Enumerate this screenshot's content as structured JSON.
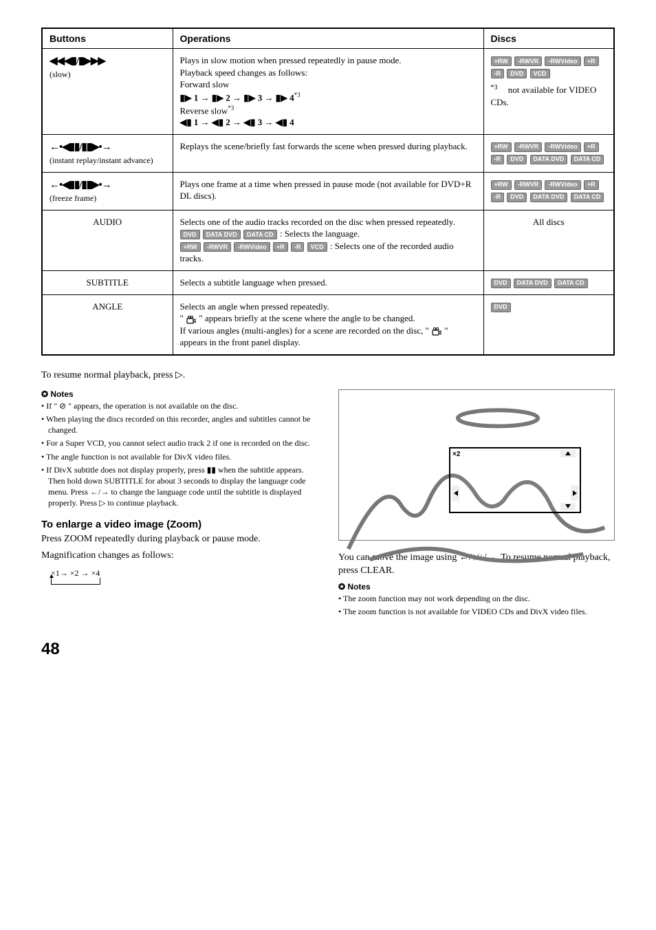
{
  "table": {
    "headers": {
      "buttons": "Buttons",
      "operations": "Operations",
      "discs": "Discs"
    },
    "rows": [
      {
        "button_glyphs": "◀◀◀▮/▮▶▶▶",
        "button_sub": "(slow)",
        "op_l1": "Plays in slow motion when pressed repeatedly in pause mode.",
        "op_l2": "Playback speed changes as follows:",
        "op_l3": "Forward slow",
        "op_fwd": "▮▶ 1 → ▮▶ 2 → ▮▶ 3 → ▮▶ 4",
        "op_fwd_sup": "*3",
        "op_l4": "Reverse slow",
        "op_l4_sup": "*3",
        "op_rev": "◀▮ 1 → ◀▮ 2 → ◀▮ 3 → ◀▮ 4",
        "discs": [
          "+RW",
          "-RWVR",
          "-RWVideo",
          "+R",
          "-R",
          "DVD",
          "VCD"
        ],
        "disc_note": "*3",
        "disc_note_txt": " not available for VIDEO CDs."
      },
      {
        "button_glyphs": "←•◀▮▮/▮▮▶•→",
        "button_sub": "(instant replay/instant advance)",
        "op_l1": "Replays the scene/briefly fast forwards the scene when pressed during playback.",
        "discs": [
          "+RW",
          "-RWVR",
          "-RWVideo",
          "+R",
          "-R",
          "DVD",
          "DATA DVD",
          "DATA CD"
        ]
      },
      {
        "button_glyphs": "←•◀▮▮/▮▮▶•→",
        "button_sub": "(freeze frame)",
        "op_l1": "Plays one frame at a time when pressed in pause mode (not available for DVD+R DL discs).",
        "discs": [
          "+RW",
          "-RWVR",
          "-RWVideo",
          "+R",
          "-R",
          "DVD",
          "DATA DVD",
          "DATA CD"
        ]
      },
      {
        "button_text": "AUDIO",
        "op_l1": "Selects one of the audio tracks recorded on the disc when pressed repeatedly.",
        "op_badges1": [
          "DVD",
          "DATA DVD",
          "DATA CD"
        ],
        "op_after1": " : Selects the language.",
        "op_badges2": [
          "+RW",
          "-RWVR",
          "-RWVideo",
          "+R",
          "-R",
          "VCD"
        ],
        "op_after2": " : Selects one of the recorded audio tracks.",
        "discs_text": "All discs"
      },
      {
        "button_text": "SUBTITLE",
        "op_l1": "Selects a subtitle language when pressed.",
        "discs": [
          "DVD",
          "DATA DVD",
          "DATA CD"
        ]
      },
      {
        "button_text": "ANGLE",
        "op_l1": "Selects an angle when pressed repeatedly.",
        "op_l2a": "\" ",
        "op_l2b": " \" appears briefly at the scene where the angle to be changed.",
        "op_l3": "If various angles (multi-angles) for a scene are recorded on the disc, \" ",
        "op_l3b": " \" appears in the front panel display.",
        "discs": [
          "DVD"
        ]
      }
    ]
  },
  "resume": "To resume normal playback, press ▷.",
  "notes_label": "Notes",
  "left_notes": [
    "If \" ⊘ \" appears, the operation is not available on the disc.",
    "When playing the discs recorded on this recorder, angles and subtitles cannot be changed.",
    "For a Super VCD, you cannot select audio track 2 if one is recorded on the disc.",
    "The angle function is not available for DivX video files.",
    "If DivX subtitle does not display properly, press ▮▮ when the subtitle appears. Then hold down SUBTITLE for about 3 seconds to display the language code menu. Press ←/→ to change the language code until the subtitle is displayed properly. Press ▷ to continue playback."
  ],
  "zoom_head": "To enlarge a video image (Zoom)",
  "zoom_p1": "Press ZOOM repeatedly during playback or pause mode.",
  "zoom_p2": "Magnification changes as follows:",
  "mag_seq": "×1→ ×2 → ×4",
  "zoom_x2": "×2",
  "right_p1": "You can move the image using ←/↑/↓/→. To resume normal playback, press CLEAR.",
  "right_notes": [
    "The zoom function may not work depending on the disc.",
    "The zoom function is not available for VIDEO CDs and DivX video files."
  ],
  "page": "48"
}
